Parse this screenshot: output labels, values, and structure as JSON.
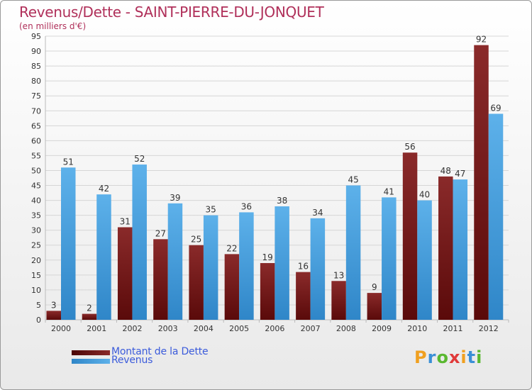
{
  "chart_data": {
    "type": "bar",
    "title": "Revenus/Dette - SAINT-PIERRE-DU-JONQUET",
    "subtitle": "(en milliers d'€)",
    "categories": [
      "2000",
      "2001",
      "2002",
      "2003",
      "2004",
      "2005",
      "2006",
      "2007",
      "2008",
      "2009",
      "2010",
      "2011",
      "2012"
    ],
    "series": [
      {
        "name": "Montant de la Dette",
        "color": "#7a1c1c",
        "values": [
          3,
          2,
          31,
          27,
          25,
          22,
          19,
          16,
          13,
          9,
          56,
          48,
          92
        ]
      },
      {
        "name": "Revenus",
        "color": "#4aa3e0",
        "values": [
          51,
          42,
          52,
          39,
          35,
          36,
          38,
          34,
          45,
          41,
          40,
          47,
          69
        ]
      }
    ],
    "ylim": [
      0,
      95
    ],
    "yticks": [
      0,
      5,
      10,
      15,
      20,
      25,
      30,
      35,
      40,
      45,
      50,
      55,
      60,
      65,
      70,
      75,
      80,
      85,
      90,
      95
    ],
    "grid": true,
    "legend": "bottom-left"
  },
  "logo": {
    "letters": [
      "P",
      "r",
      "o",
      "x",
      "i",
      "t",
      "i"
    ]
  }
}
